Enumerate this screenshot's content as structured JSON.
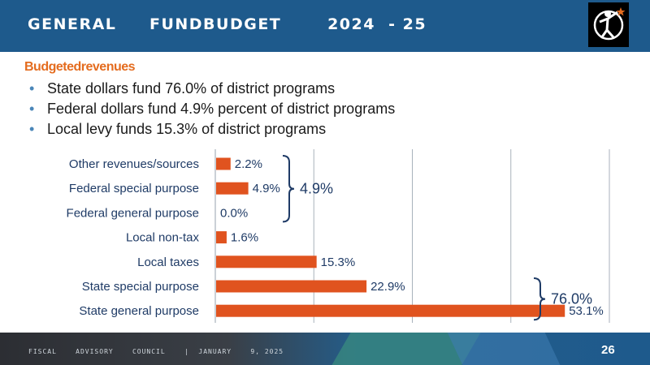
{
  "header": {
    "title": "GENERAL     FUNDBUDGET       2024  - 25",
    "logo_icon": "district-logo-icon"
  },
  "section_title": "Budgetedrevenues",
  "bullets": [
    "State dollars fund 76.0% of district programs",
    "Federal dollars fund 4.9% percent of district programs",
    "Local levy funds 15.3% of district programs"
  ],
  "chart_data": {
    "type": "bar",
    "orientation": "horizontal",
    "categories": [
      "Other revenues/sources",
      "Federal special purpose",
      "Federal general purpose",
      "Local non-tax",
      "Local taxes",
      "State special purpose",
      "State general purpose"
    ],
    "values": [
      2.2,
      4.9,
      0.0,
      1.6,
      15.3,
      22.9,
      53.1
    ],
    "data_labels": [
      "2.2%",
      "4.9%",
      "0.0%",
      "1.6%",
      "15.3%",
      "22.9%",
      "53.1%"
    ],
    "xlim": [
      0,
      60
    ],
    "grid": true,
    "bar_color": "#e0531f",
    "brace_labels": [
      {
        "text": "4.9%",
        "from": "Other revenues/sources",
        "to": "Federal general purpose"
      },
      {
        "text": "76.0%",
        "from": "State special purpose",
        "to": "State general purpose"
      }
    ]
  },
  "footer": {
    "text": "FISCAL    ADVISORY    COUNCIL    |  JANUARY    9, 2025",
    "page_number": "26"
  },
  "colors": {
    "header_bg": "#1e5a8c",
    "accent_orange": "#e46c1f",
    "label_blue": "#1f3b66"
  }
}
